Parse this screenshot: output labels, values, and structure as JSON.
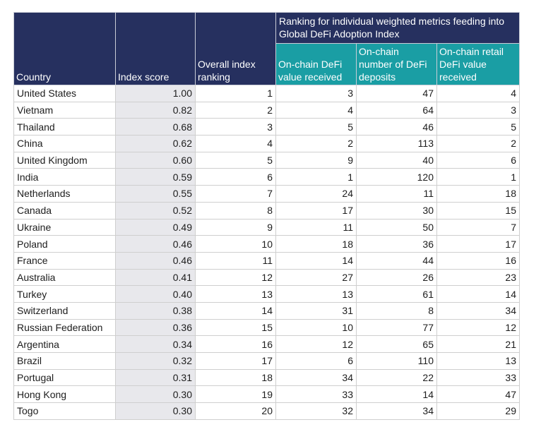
{
  "header": {
    "group_title": "Ranking for individual weighted metrics feeding into Global DeFi Adoption Index",
    "country": "Country",
    "index_score": "Index score",
    "overall_ranking": "Overall index ranking",
    "metric_value_received": "On-chain DeFi value received",
    "metric_deposits": "On-chain number of DeFi deposits",
    "metric_retail": "On-chain retail DeFi value received"
  },
  "rows": [
    {
      "country": "United States",
      "score": "1.00",
      "overall": "1",
      "value": "3",
      "deposits": "47",
      "retail": "4"
    },
    {
      "country": "Vietnam",
      "score": "0.82",
      "overall": "2",
      "value": "4",
      "deposits": "64",
      "retail": "3"
    },
    {
      "country": "Thailand",
      "score": "0.68",
      "overall": "3",
      "value": "5",
      "deposits": "46",
      "retail": "5"
    },
    {
      "country": "China",
      "score": "0.62",
      "overall": "4",
      "value": "2",
      "deposits": "113",
      "retail": "2"
    },
    {
      "country": "United Kingdom",
      "score": "0.60",
      "overall": "5",
      "value": "9",
      "deposits": "40",
      "retail": "6"
    },
    {
      "country": "India",
      "score": "0.59",
      "overall": "6",
      "value": "1",
      "deposits": "120",
      "retail": "1"
    },
    {
      "country": "Netherlands",
      "score": "0.55",
      "overall": "7",
      "value": "24",
      "deposits": "11",
      "retail": "18"
    },
    {
      "country": "Canada",
      "score": "0.52",
      "overall": "8",
      "value": "17",
      "deposits": "30",
      "retail": "15"
    },
    {
      "country": "Ukraine",
      "score": "0.49",
      "overall": "9",
      "value": "11",
      "deposits": "50",
      "retail": "7"
    },
    {
      "country": "Poland",
      "score": "0.46",
      "overall": "10",
      "value": "18",
      "deposits": "36",
      "retail": "17"
    },
    {
      "country": "France",
      "score": "0.46",
      "overall": "11",
      "value": "14",
      "deposits": "44",
      "retail": "16"
    },
    {
      "country": "Australia",
      "score": "0.41",
      "overall": "12",
      "value": "27",
      "deposits": "26",
      "retail": "23"
    },
    {
      "country": "Turkey",
      "score": "0.40",
      "overall": "13",
      "value": "13",
      "deposits": "61",
      "retail": "14"
    },
    {
      "country": "Switzerland",
      "score": "0.38",
      "overall": "14",
      "value": "31",
      "deposits": "8",
      "retail": "34"
    },
    {
      "country": "Russian Federation",
      "score": "0.36",
      "overall": "15",
      "value": "10",
      "deposits": "77",
      "retail": "12"
    },
    {
      "country": "Argentina",
      "score": "0.34",
      "overall": "16",
      "value": "12",
      "deposits": "65",
      "retail": "21"
    },
    {
      "country": "Brazil",
      "score": "0.32",
      "overall": "17",
      "value": "6",
      "deposits": "110",
      "retail": "13"
    },
    {
      "country": "Portugal",
      "score": "0.31",
      "overall": "18",
      "value": "34",
      "deposits": "22",
      "retail": "33"
    },
    {
      "country": "Hong Kong",
      "score": "0.30",
      "overall": "19",
      "value": "33",
      "deposits": "14",
      "retail": "47"
    },
    {
      "country": "Togo",
      "score": "0.30",
      "overall": "20",
      "value": "32",
      "deposits": "34",
      "retail": "29"
    }
  ]
}
